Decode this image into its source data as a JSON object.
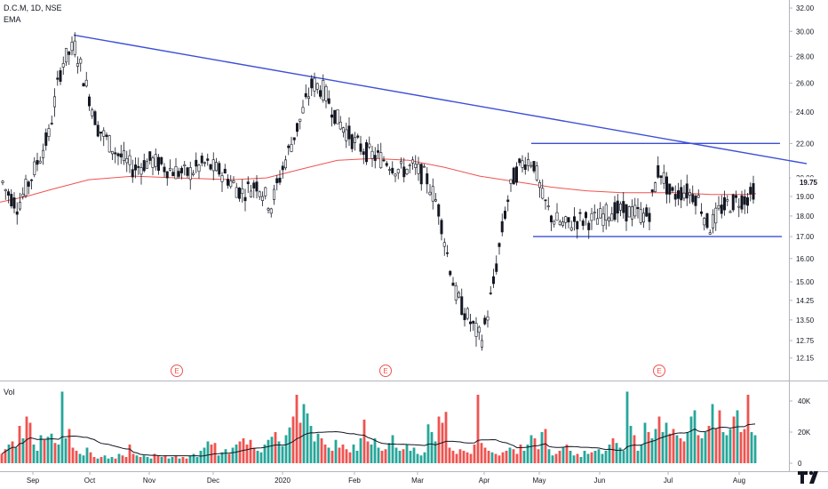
{
  "legend": {
    "symbol": "D.C.M, 1D, NSE",
    "indicator": "EMA",
    "volume": "Vol"
  },
  "colors": {
    "up": "#26a69a",
    "down": "#ef5350",
    "candle": "#131722",
    "ema": "#ef5350",
    "trendline": "#3c4fd6",
    "volume_ma": "#131722",
    "earnings": "#ef5350"
  },
  "earnings_marker": "E",
  "last_price_label": "19.75",
  "chart_data": [
    {
      "type": "candlestick",
      "title": "D.C.M, 1D, NSE",
      "x_ticks": [
        "Sep",
        "Oct",
        "Nov",
        "Dec",
        "2020",
        "Feb",
        "Mar",
        "Apr",
        "May",
        "Jun",
        "Jul",
        "Aug"
      ],
      "y_ticks": [
        "12.15",
        "12.75",
        "13.50",
        "14.25",
        "15.00",
        "16.00",
        "17.00",
        "18.00",
        "19.00",
        "20.00",
        "22.00",
        "24.00",
        "26.00",
        "28.00",
        "30.00",
        "32.00"
      ],
      "y_scale": "log",
      "ylim": [
        11.7,
        32.4
      ],
      "series": [
        {
          "name": "EMA",
          "type": "line",
          "points": [
            [
              0,
              18.7
            ],
            [
              30,
              19.0
            ],
            [
              60,
              19.4
            ],
            [
              100,
              19.9
            ],
            [
              150,
              20.1
            ],
            [
              200,
              20.0
            ],
            [
              260,
              19.9
            ],
            [
              300,
              20.0
            ],
            [
              340,
              20.5
            ],
            [
              380,
              21.0
            ],
            [
              420,
              21.1
            ],
            [
              460,
              21.0
            ],
            [
              500,
              20.6
            ],
            [
              540,
              20.1
            ],
            [
              580,
              19.8
            ],
            [
              620,
              19.5
            ],
            [
              660,
              19.3
            ],
            [
              700,
              19.2
            ],
            [
              760,
              19.2
            ],
            [
              800,
              19.1
            ],
            [
              840,
              19.1
            ],
            [
              851,
              19.15
            ]
          ]
        },
        {
          "name": "Trendline",
          "type": "line",
          "points": [
            [
              83,
              29.7
            ],
            [
              908,
              20.8
            ]
          ]
        },
        {
          "name": "Range top",
          "type": "line",
          "points": [
            [
              598,
              22.0
            ],
            [
              878,
              22.0
            ]
          ]
        },
        {
          "name": "Range bottom",
          "type": "line",
          "points": [
            [
              600,
              17.0
            ],
            [
              880,
              17.0
            ]
          ]
        }
      ],
      "candle_path": [
        [
          4,
          19.5
        ],
        [
          20,
          18.5
        ],
        [
          35,
          20.0
        ],
        [
          55,
          22.5
        ],
        [
          70,
          27.5
        ],
        [
          84,
          28.8
        ],
        [
          96,
          26.0
        ],
        [
          110,
          23.0
        ],
        [
          130,
          21.5
        ],
        [
          150,
          20.5
        ],
        [
          170,
          21.0
        ],
        [
          190,
          20.5
        ],
        [
          210,
          20.2
        ],
        [
          230,
          20.8
        ],
        [
          250,
          20.3
        ],
        [
          272,
          19.2
        ],
        [
          290,
          19.7
        ],
        [
          305,
          18.5
        ],
        [
          320,
          20.8
        ],
        [
          338,
          23.5
        ],
        [
          352,
          26.0
        ],
        [
          364,
          25.5
        ],
        [
          380,
          23.5
        ],
        [
          400,
          22.0
        ],
        [
          418,
          21.3
        ],
        [
          435,
          21.0
        ],
        [
          450,
          20.4
        ],
        [
          465,
          20.6
        ],
        [
          480,
          20.0
        ],
        [
          493,
          18.5
        ],
        [
          503,
          16.3
        ],
        [
          513,
          14.5
        ],
        [
          523,
          13.8
        ],
        [
          535,
          13.1
        ],
        [
          542,
          12.8
        ],
        [
          548,
          13.6
        ],
        [
          555,
          14.8
        ],
        [
          562,
          16.5
        ],
        [
          570,
          18.5
        ],
        [
          578,
          20.0
        ],
        [
          590,
          21.0
        ],
        [
          600,
          21.0
        ],
        [
          610,
          19.0
        ],
        [
          620,
          18.0
        ],
        [
          635,
          17.5
        ],
        [
          650,
          17.8
        ],
        [
          670,
          17.8
        ],
        [
          690,
          18.3
        ],
        [
          710,
          18.2
        ],
        [
          730,
          18.0
        ],
        [
          742,
          20.6
        ],
        [
          755,
          19.0
        ],
        [
          770,
          19.3
        ],
        [
          785,
          19.0
        ],
        [
          798,
          17.4
        ],
        [
          812,
          18.4
        ],
        [
          830,
          18.8
        ],
        [
          845,
          19.0
        ],
        [
          851,
          19.75
        ]
      ],
      "earnings_x": [
        199,
        434,
        742
      ],
      "volume": {
        "y_ticks": [
          "0",
          "20K",
          "40K"
        ],
        "ylim": [
          0,
          48000
        ],
        "bars": [
          [
            0,
            6
          ],
          [
            4,
            9
          ],
          [
            8,
            12
          ],
          [
            12,
            14
          ],
          [
            16,
            10
          ],
          [
            20,
            24
          ],
          [
            24,
            16
          ],
          [
            28,
            30
          ],
          [
            32,
            26
          ],
          [
            36,
            12
          ],
          [
            40,
            8
          ],
          [
            44,
            18
          ],
          [
            48,
            15
          ],
          [
            52,
            17
          ],
          [
            56,
            19
          ],
          [
            60,
            13
          ],
          [
            64,
            12
          ],
          [
            68,
            46
          ],
          [
            72,
            16
          ],
          [
            76,
            22
          ],
          [
            80,
            10
          ],
          [
            84,
            8
          ],
          [
            88,
            6
          ],
          [
            92,
            5
          ],
          [
            96,
            10
          ],
          [
            100,
            7
          ],
          [
            104,
            4
          ],
          [
            108,
            3
          ],
          [
            112,
            4
          ],
          [
            116,
            5
          ],
          [
            120,
            3
          ],
          [
            124,
            4
          ],
          [
            128,
            3
          ],
          [
            132,
            6
          ],
          [
            136,
            5
          ],
          [
            140,
            4
          ],
          [
            144,
            12
          ],
          [
            148,
            6
          ],
          [
            152,
            5
          ],
          [
            156,
            4
          ],
          [
            160,
            5
          ],
          [
            164,
            4
          ],
          [
            168,
            3
          ],
          [
            172,
            6
          ],
          [
            176,
            5
          ],
          [
            180,
            4
          ],
          [
            184,
            5
          ],
          [
            188,
            3
          ],
          [
            192,
            4
          ],
          [
            196,
            5
          ],
          [
            200,
            3
          ],
          [
            204,
            4
          ],
          [
            208,
            3
          ],
          [
            212,
            5
          ],
          [
            216,
            6
          ],
          [
            220,
            4
          ],
          [
            224,
            8
          ],
          [
            228,
            10
          ],
          [
            232,
            14
          ],
          [
            236,
            12
          ],
          [
            240,
            13
          ],
          [
            244,
            5
          ],
          [
            248,
            7
          ],
          [
            252,
            9
          ],
          [
            256,
            6
          ],
          [
            260,
            10
          ],
          [
            264,
            12
          ],
          [
            268,
            14
          ],
          [
            272,
            16
          ],
          [
            276,
            12
          ],
          [
            280,
            15
          ],
          [
            284,
            10
          ],
          [
            288,
            8
          ],
          [
            292,
            7
          ],
          [
            296,
            12
          ],
          [
            300,
            15
          ],
          [
            304,
            17
          ],
          [
            308,
            20
          ],
          [
            312,
            14
          ],
          [
            316,
            11
          ],
          [
            320,
            18
          ],
          [
            324,
            23
          ],
          [
            328,
            30
          ],
          [
            332,
            44
          ],
          [
            336,
            26
          ],
          [
            340,
            38
          ],
          [
            344,
            32
          ],
          [
            348,
            24
          ],
          [
            352,
            14
          ],
          [
            356,
            19
          ],
          [
            360,
            16
          ],
          [
            364,
            12
          ],
          [
            368,
            10
          ],
          [
            372,
            8
          ],
          [
            376,
            15
          ],
          [
            380,
            10
          ],
          [
            384,
            12
          ],
          [
            388,
            9
          ],
          [
            392,
            7
          ],
          [
            396,
            12
          ],
          [
            400,
            8
          ],
          [
            404,
            16
          ],
          [
            408,
            28
          ],
          [
            412,
            14
          ],
          [
            416,
            12
          ],
          [
            420,
            16
          ],
          [
            424,
            10
          ],
          [
            428,
            8
          ],
          [
            432,
            9
          ],
          [
            436,
            13
          ],
          [
            440,
            18
          ],
          [
            444,
            10
          ],
          [
            448,
            8
          ],
          [
            452,
            9
          ],
          [
            456,
            12
          ],
          [
            460,
            8
          ],
          [
            464,
            10
          ],
          [
            468,
            6
          ],
          [
            472,
            5
          ],
          [
            476,
            7
          ],
          [
            480,
            25
          ],
          [
            484,
            20
          ],
          [
            488,
            14
          ],
          [
            492,
            30
          ],
          [
            496,
            26
          ],
          [
            500,
            33
          ],
          [
            504,
            10
          ],
          [
            508,
            8
          ],
          [
            512,
            6
          ],
          [
            516,
            9
          ],
          [
            520,
            8
          ],
          [
            524,
            7
          ],
          [
            528,
            6
          ],
          [
            532,
            12
          ],
          [
            536,
            44
          ],
          [
            540,
            13
          ],
          [
            544,
            10
          ],
          [
            548,
            8
          ],
          [
            552,
            7
          ],
          [
            556,
            6
          ],
          [
            560,
            5
          ],
          [
            564,
            7
          ],
          [
            568,
            8
          ],
          [
            572,
            10
          ],
          [
            576,
            9
          ],
          [
            580,
            6
          ],
          [
            584,
            12
          ],
          [
            588,
            8
          ],
          [
            592,
            12
          ],
          [
            596,
            18
          ],
          [
            600,
            16
          ],
          [
            604,
            9
          ],
          [
            608,
            20
          ],
          [
            612,
            22
          ],
          [
            616,
            9
          ],
          [
            620,
            5
          ],
          [
            624,
            6
          ],
          [
            628,
            8
          ],
          [
            632,
            10
          ],
          [
            636,
            12
          ],
          [
            640,
            8
          ],
          [
            644,
            5
          ],
          [
            648,
            6
          ],
          [
            652,
            4
          ],
          [
            656,
            8
          ],
          [
            660,
            6
          ],
          [
            664,
            7
          ],
          [
            668,
            8
          ],
          [
            672,
            9
          ],
          [
            676,
            6
          ],
          [
            680,
            8
          ],
          [
            684,
            12
          ],
          [
            688,
            16
          ],
          [
            692,
            13
          ],
          [
            696,
            10
          ],
          [
            700,
            8
          ],
          [
            704,
            46
          ],
          [
            708,
            24
          ],
          [
            712,
            18
          ],
          [
            716,
            8
          ],
          [
            720,
            12
          ],
          [
            724,
            26
          ],
          [
            728,
            20
          ],
          [
            732,
            16
          ],
          [
            736,
            22
          ],
          [
            740,
            30
          ],
          [
            744,
            20
          ],
          [
            748,
            26
          ],
          [
            752,
            19
          ],
          [
            756,
            22
          ],
          [
            760,
            18
          ],
          [
            764,
            16
          ],
          [
            768,
            14
          ],
          [
            772,
            20
          ],
          [
            776,
            30
          ],
          [
            780,
            34
          ],
          [
            784,
            18
          ],
          [
            788,
            16
          ],
          [
            792,
            20
          ],
          [
            796,
            24
          ],
          [
            800,
            38
          ],
          [
            804,
            22
          ],
          [
            808,
            34
          ],
          [
            812,
            20
          ],
          [
            816,
            18
          ],
          [
            820,
            22
          ],
          [
            824,
            30
          ],
          [
            828,
            34
          ],
          [
            832,
            20
          ],
          [
            836,
            22
          ],
          [
            840,
            44
          ],
          [
            844,
            20
          ],
          [
            848,
            18
          ]
        ]
      }
    }
  ]
}
